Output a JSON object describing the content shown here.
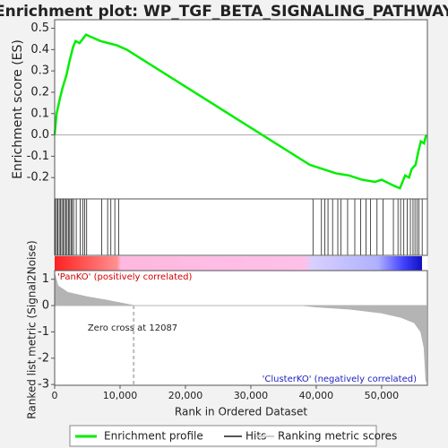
{
  "chart_data": [
    {
      "type": "line",
      "title": "Enrichment plot: WP_TGF_BETA_SIGNALING_PATHWAY",
      "ylabel": "Enrichment score (ES)",
      "color": "#00ee00",
      "xlim": [
        0,
        57000
      ],
      "ylim": [
        -0.3,
        0.54
      ],
      "yticks": [
        -0.2,
        -0.1,
        {
          "value": 0,
          "label": "0.0"
        },
        0.1,
        0.2,
        0.3,
        0.4,
        0.5
      ],
      "x": [
        0,
        300,
        800,
        1200,
        1800,
        2300,
        2800,
        3200,
        3800,
        4300,
        4800,
        5500,
        7000,
        9500,
        11000,
        39000,
        43000,
        45000,
        47000,
        49000,
        50000,
        52000,
        52800,
        53200,
        53600,
        54200,
        54600,
        55200,
        55600,
        56000,
        56500,
        56800
      ],
      "values": [
        0,
        0.1,
        0.17,
        0.22,
        0.28,
        0.35,
        0.41,
        0.44,
        0.43,
        0.45,
        0.47,
        0.46,
        0.44,
        0.42,
        0.4,
        -0.14,
        -0.18,
        -0.19,
        -0.21,
        -0.22,
        -0.21,
        -0.24,
        -0.25,
        -0.22,
        -0.19,
        -0.2,
        -0.16,
        -0.14,
        -0.08,
        -0.03,
        -0.04,
        0
      ],
      "legend": [
        {
          "name": "Enrichment profile",
          "color": "#00ee00"
        },
        {
          "name": "Hits",
          "color": "#555555"
        },
        {
          "name": "Ranking metric scores",
          "color": "#cccccc"
        }
      ]
    },
    {
      "type": "hits",
      "color": "#000000",
      "xlim": [
        0,
        57000
      ],
      "x": [
        100,
        300,
        500,
        700,
        900,
        1100,
        1300,
        1500,
        1700,
        1900,
        2100,
        2300,
        2500,
        2700,
        2900,
        3300,
        3900,
        4300,
        4600,
        4900,
        7200,
        8100,
        8600,
        9200,
        9800,
        39500,
        40800,
        41300,
        41800,
        42500,
        43300,
        43800,
        44800,
        45900,
        46800,
        47600,
        48300,
        49300,
        50200,
        51800,
        52500,
        52900,
        53400,
        53900,
        54400,
        54800,
        55100,
        55400,
        55700,
        56200
      ]
    },
    {
      "type": "area",
      "color": "#b4b4b4",
      "xlabel": "Rank in Ordered Dataset",
      "ylabel": "Ranked list metric (Signal2Noise)",
      "pos_label": "'PanKO' (positively correlated)",
      "neg_label": "'ClusterKO' (negatively correlated)",
      "zero_cross_label": "Zero cross at 12087",
      "zero_cross": 12087,
      "xlim": [
        0,
        57000
      ],
      "ylim": [
        -3.03,
        1.33
      ],
      "yticks": [
        -3,
        -2,
        -1,
        0,
        1
      ],
      "xticks": [
        0,
        {
          "value": 10000,
          "label": "10,000"
        },
        {
          "value": 20000,
          "label": "20,000"
        },
        {
          "value": 30000,
          "label": "30,000"
        },
        {
          "value": 40000,
          "label": "40,000"
        },
        {
          "value": 50000,
          "label": "50,000"
        }
      ],
      "x": [
        0,
        500,
        2000,
        5000,
        8000,
        12087,
        38000,
        40000,
        45000,
        50000,
        53000,
        55000,
        56000,
        56500,
        56800
      ],
      "values": [
        1.2,
        0.75,
        0.5,
        0.33,
        0.2,
        0,
        0,
        -0.05,
        -0.13,
        -0.28,
        -0.45,
        -0.65,
        -1.0,
        -1.6,
        -2.9
      ]
    }
  ]
}
